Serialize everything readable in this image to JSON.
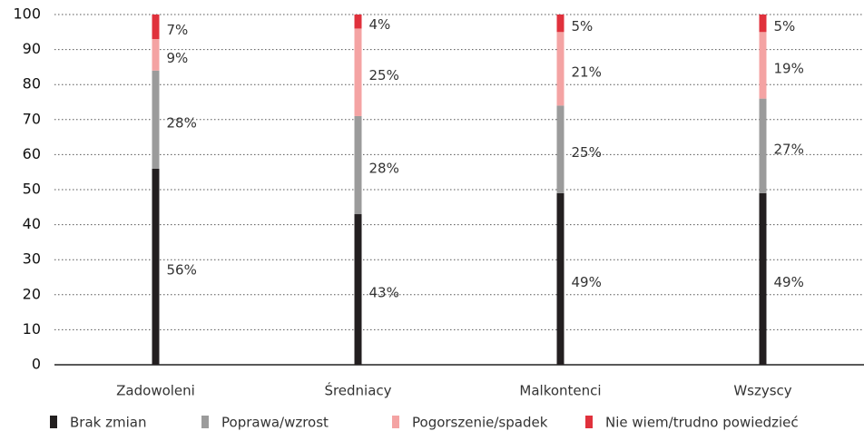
{
  "chart_data": {
    "type": "stacked-bar",
    "categories": [
      "Zadowoleni",
      "Średniacy",
      "Malkontenci",
      "Wszyscy"
    ],
    "series": [
      {
        "name": "Brak zmian",
        "color": "#231f20",
        "values": [
          56,
          43,
          49,
          49
        ],
        "value_labels": [
          "56%",
          "43%",
          "49%",
          "49%"
        ]
      },
      {
        "name": "Poprawa/wzrost",
        "color": "#9b9b9b",
        "values": [
          28,
          28,
          25,
          27
        ],
        "value_labels": [
          "28%",
          "28%",
          "25%",
          "27%"
        ]
      },
      {
        "name": "Pogorszenie/spadek",
        "color": "#f4a3a3",
        "values": [
          9,
          25,
          21,
          19
        ],
        "value_labels": [
          "9%",
          "25%",
          "21%",
          "19%"
        ]
      },
      {
        "name": "Nie wiem/trudno powiedzieć",
        "color": "#e0313c",
        "values": [
          7,
          4,
          5,
          5
        ],
        "value_labels": [
          "7%",
          "4%",
          "5%",
          "5%"
        ]
      }
    ],
    "ylim": [
      0,
      100
    ],
    "yticks": [
      0,
      10,
      20,
      30,
      40,
      50,
      60,
      70,
      80,
      90,
      100
    ],
    "grid": true,
    "legend": "bottom"
  }
}
